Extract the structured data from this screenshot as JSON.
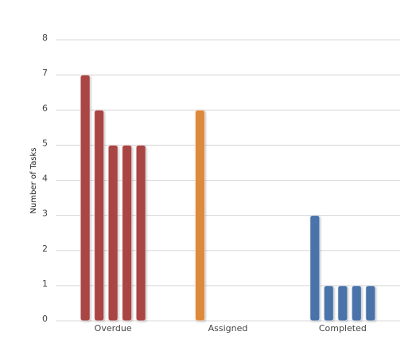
{
  "chart_data": {
    "type": "bar",
    "y_label": "Number of Tasks",
    "categories": [
      "Overdue",
      "Assigned",
      "Completed"
    ],
    "colors": [
      "#a94645",
      "#dd8a3c",
      "#4a73a9"
    ],
    "series": [
      {
        "values": [
          7,
          6,
          3
        ]
      },
      {
        "values": [
          6,
          null,
          1
        ]
      },
      {
        "values": [
          5,
          null,
          1
        ]
      },
      {
        "values": [
          5,
          null,
          1
        ]
      },
      {
        "values": [
          5,
          null,
          1
        ]
      }
    ],
    "ylim": [
      0,
      8
    ],
    "yticks": [
      0,
      1,
      2,
      3,
      4,
      5,
      6,
      7,
      8
    ],
    "grid": true
  }
}
